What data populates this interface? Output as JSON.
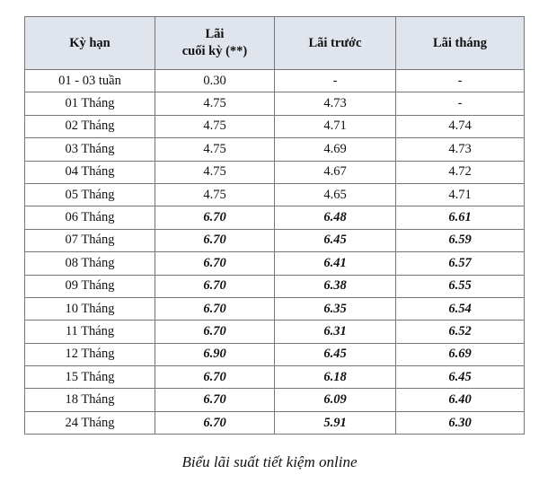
{
  "table": {
    "header": [
      "Kỳ hạn",
      [
        "Lãi",
        "cuối kỳ (**)"
      ],
      "Lãi trước",
      "Lãi tháng"
    ],
    "rows": [
      {
        "cells": [
          "01 - 03 tuần",
          "0.30",
          "-",
          "-"
        ],
        "emphasis": false
      },
      {
        "cells": [
          "01 Tháng",
          "4.75",
          "4.73",
          "-"
        ],
        "emphasis": false
      },
      {
        "cells": [
          "02 Tháng",
          "4.75",
          "4.71",
          "4.74"
        ],
        "emphasis": false
      },
      {
        "cells": [
          "03 Tháng",
          "4.75",
          "4.69",
          "4.73"
        ],
        "emphasis": false
      },
      {
        "cells": [
          "04 Tháng",
          "4.75",
          "4.67",
          "4.72"
        ],
        "emphasis": false
      },
      {
        "cells": [
          "05 Tháng",
          "4.75",
          "4.65",
          "4.71"
        ],
        "emphasis": false
      },
      {
        "cells": [
          "06 Tháng",
          "6.70",
          "6.48",
          "6.61"
        ],
        "emphasis": true
      },
      {
        "cells": [
          "07 Tháng",
          "6.70",
          "6.45",
          "6.59"
        ],
        "emphasis": true
      },
      {
        "cells": [
          "08 Tháng",
          "6.70",
          "6.41",
          "6.57"
        ],
        "emphasis": true
      },
      {
        "cells": [
          "09 Tháng",
          "6.70",
          "6.38",
          "6.55"
        ],
        "emphasis": true
      },
      {
        "cells": [
          "10 Tháng",
          "6.70",
          "6.35",
          "6.54"
        ],
        "emphasis": true
      },
      {
        "cells": [
          "11 Tháng",
          "6.70",
          "6.31",
          "6.52"
        ],
        "emphasis": true
      },
      {
        "cells": [
          "12 Tháng",
          "6.90",
          "6.45",
          "6.69"
        ],
        "emphasis": true
      },
      {
        "cells": [
          "15 Tháng",
          "6.70",
          "6.18",
          "6.45"
        ],
        "emphasis": true
      },
      {
        "cells": [
          "18 Tháng",
          "6.70",
          "6.09",
          "6.40"
        ],
        "emphasis": true
      },
      {
        "cells": [
          "24 Tháng",
          "6.70",
          "5.91",
          "6.30"
        ],
        "emphasis": true
      }
    ]
  },
  "caption": "Biểu lãi suất tiết kiệm online"
}
